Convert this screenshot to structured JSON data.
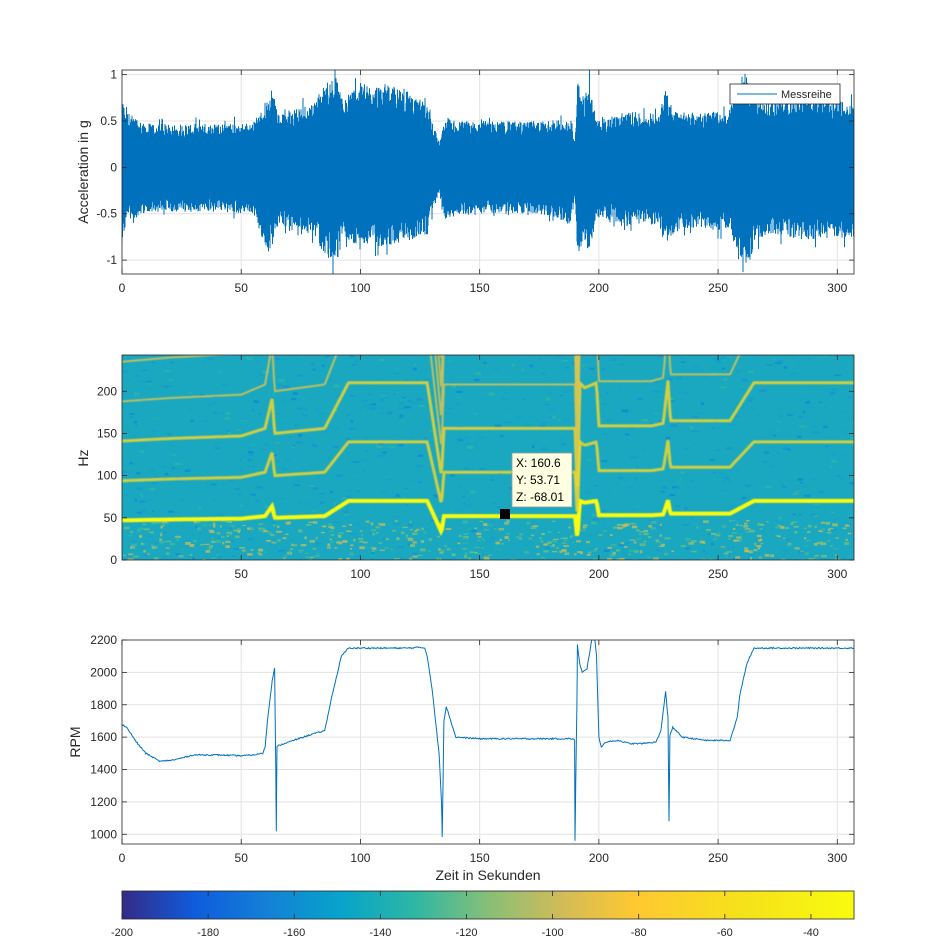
{
  "chart_data": [
    {
      "type": "line",
      "title": "",
      "xlabel": "",
      "ylabel": "Acceleration in g",
      "xlim": [
        0,
        307
      ],
      "ylim": [
        -1.15,
        1.05
      ],
      "xticks": [
        0,
        50,
        100,
        150,
        200,
        250,
        300
      ],
      "yticks": [
        -1,
        -0.5,
        0,
        0.5,
        1
      ],
      "ytick_labels": [
        "-1",
        "-0.5",
        "0",
        "0.5",
        "1"
      ],
      "grid": true,
      "legend": {
        "position": "top-right",
        "entries": [
          "Messreihe"
        ]
      },
      "series": [
        {
          "name": "Messreihe",
          "color": "#0072BD",
          "x": [
            0,
            2,
            10,
            30,
            55,
            61,
            63,
            66,
            70,
            80,
            86,
            90,
            93,
            96,
            100,
            110,
            120,
            128,
            133,
            136,
            140,
            150,
            160,
            170,
            180,
            188,
            190,
            191,
            194,
            196,
            199,
            205,
            210,
            215,
            220,
            225,
            228,
            232,
            240,
            250,
            255,
            259,
            262,
            265,
            270,
            280,
            290,
            300,
            307
          ],
          "upper": [
            0.75,
            0.6,
            0.47,
            0.47,
            0.48,
            0.75,
            0.85,
            0.55,
            0.62,
            0.7,
            0.92,
            0.98,
            0.7,
            0.85,
            0.88,
            0.9,
            0.82,
            0.68,
            0.28,
            0.55,
            0.5,
            0.5,
            0.5,
            0.5,
            0.5,
            0.52,
            0.3,
            0.92,
            0.75,
            0.95,
            0.52,
            0.55,
            0.6,
            0.6,
            0.55,
            0.6,
            0.85,
            0.6,
            0.6,
            0.6,
            0.63,
            0.98,
            1.02,
            0.78,
            0.72,
            0.75,
            0.8,
            0.72,
            0.68
          ],
          "lower": [
            -0.8,
            -0.6,
            -0.48,
            -0.48,
            -0.5,
            -0.95,
            -0.85,
            -0.62,
            -0.65,
            -0.72,
            -0.98,
            -1.05,
            -0.72,
            -0.85,
            -0.85,
            -0.85,
            -0.8,
            -0.68,
            -0.28,
            -0.6,
            -0.5,
            -0.5,
            -0.5,
            -0.5,
            -0.52,
            -0.62,
            -0.3,
            -0.95,
            -0.78,
            -0.95,
            -0.55,
            -0.55,
            -0.65,
            -0.62,
            -0.6,
            -0.65,
            -0.85,
            -0.7,
            -0.65,
            -0.68,
            -0.65,
            -1.05,
            -1.12,
            -0.85,
            -0.72,
            -0.75,
            -0.78,
            -0.75,
            -0.8
          ]
        }
      ]
    },
    {
      "type": "heatmap",
      "title": "",
      "xlabel": "",
      "ylabel": "Hz",
      "xlim": [
        0,
        307
      ],
      "ylim": [
        0,
        243
      ],
      "xticks": [
        50,
        100,
        150,
        200,
        250,
        300
      ],
      "yticks": [
        0,
        50,
        100,
        150,
        200
      ],
      "grid": false,
      "harmonics": [
        1,
        2,
        3,
        4,
        5,
        6,
        7,
        8,
        9,
        10
      ],
      "fundamental_track": {
        "x": [
          0,
          20,
          50,
          60,
          63,
          64,
          85,
          95,
          128,
          134,
          135,
          190,
          191,
          192,
          194,
          199,
          200,
          222,
          227,
          229,
          230,
          255,
          265,
          307
        ],
        "hz": [
          47,
          48,
          49,
          52,
          64,
          50,
          52,
          70,
          70,
          33,
          52,
          52,
          24,
          70,
          68,
          70,
          53,
          53,
          54,
          71,
          55,
          55,
          70,
          70
        ]
      },
      "datatip": {
        "X": "X: 160.6",
        "Y": "Y: 53.71",
        "Z": "Z: -68.01",
        "x": 160.6,
        "y": 53.71,
        "z": -68.01
      },
      "colorbar": {
        "range": [
          -200,
          -30
        ],
        "ticks": [
          -200,
          -180,
          -160,
          -140,
          -120,
          -100,
          -80,
          -60,
          -40
        ],
        "colormap": "parula"
      }
    },
    {
      "type": "line",
      "title": "",
      "xlabel": "Zeit in Sekunden",
      "ylabel": "RPM",
      "xlim": [
        0,
        307
      ],
      "ylim": [
        940,
        2200
      ],
      "xticks": [
        0,
        50,
        100,
        150,
        200,
        250,
        300
      ],
      "yticks": [
        1000,
        1200,
        1400,
        1600,
        1800,
        2000,
        2200
      ],
      "grid": true,
      "series": [
        {
          "color": "#0072BD",
          "x": [
            0,
            2,
            6,
            10,
            16,
            22,
            30,
            40,
            50,
            55,
            59,
            60,
            61,
            63,
            64,
            64.5,
            64.7,
            65,
            66,
            70,
            80,
            84,
            85,
            88,
            92,
            95,
            100,
            110,
            120,
            125,
            127,
            128,
            130,
            133,
            134,
            134.3,
            135,
            136,
            140,
            150,
            170,
            185,
            189,
            189.8,
            190,
            190.3,
            190.8,
            191,
            192,
            193,
            195,
            197,
            198,
            199,
            200,
            201,
            203,
            208,
            213,
            218,
            224,
            226,
            228,
            229,
            229.4,
            229.8,
            231,
            235,
            245,
            255,
            258,
            259,
            262,
            265,
            270,
            280,
            290,
            300,
            307
          ],
          "y": [
            1680,
            1660,
            1570,
            1500,
            1450,
            1460,
            1490,
            1490,
            1485,
            1490,
            1500,
            1540,
            1700,
            1950,
            2030,
            1400,
            1020,
            1540,
            1550,
            1570,
            1620,
            1635,
            1640,
            1850,
            2100,
            2150,
            2150,
            2150,
            2150,
            2155,
            2150,
            2100,
            1900,
            1500,
            1200,
            985,
            1700,
            1790,
            1600,
            1590,
            1590,
            1590,
            1590,
            1580,
            960,
            1300,
            1800,
            2170,
            2050,
            2000,
            2020,
            2200,
            2250,
            2100,
            1600,
            1540,
            1570,
            1580,
            1560,
            1560,
            1570,
            1640,
            1880,
            1720,
            1080,
            1610,
            1660,
            1600,
            1580,
            1580,
            1720,
            1850,
            2050,
            2150,
            2150,
            2150,
            2150,
            2150,
            2150
          ]
        }
      ]
    }
  ]
}
